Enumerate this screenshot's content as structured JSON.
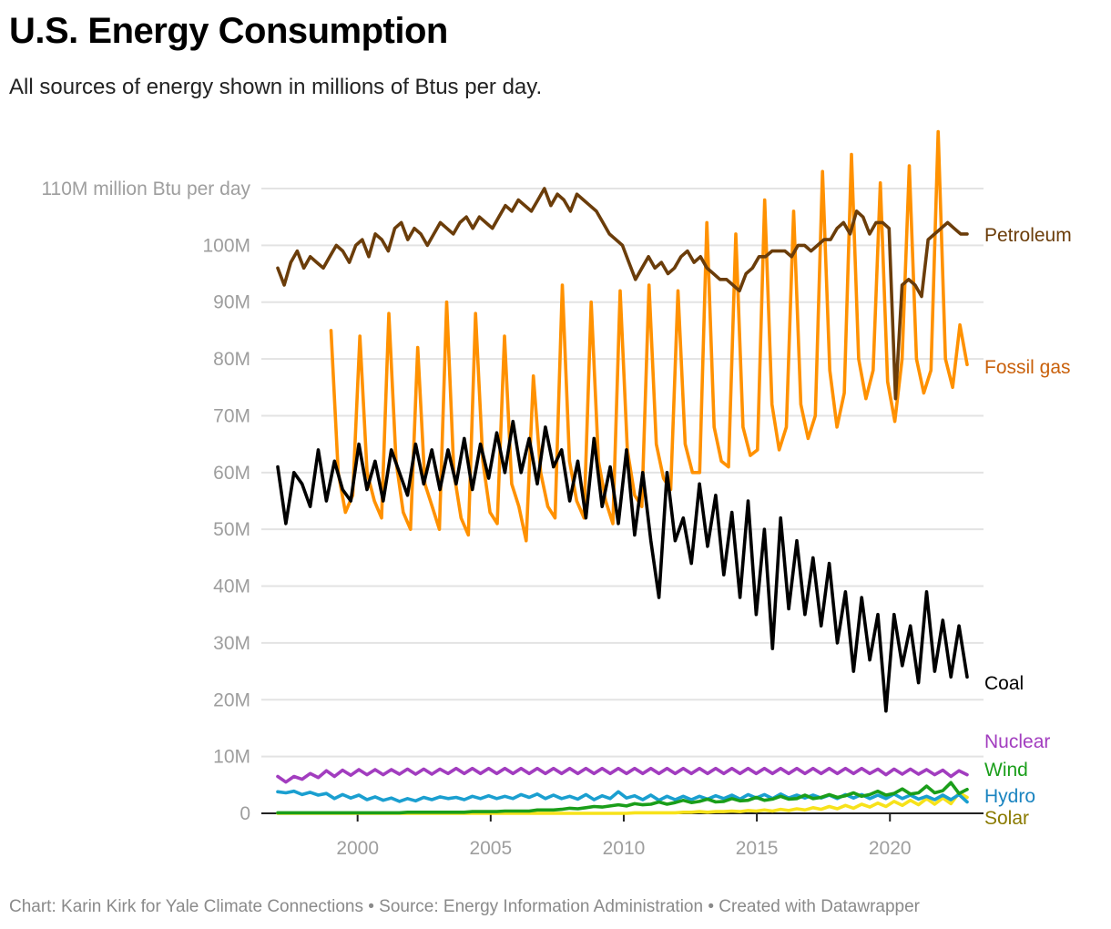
{
  "header": {
    "title": "U.S. Energy Consumption",
    "subtitle": "All sources of energy shown in millions of Btus per day."
  },
  "footer": {
    "text": "Chart: Karin Kirk for Yale Climate Connections • Source: Energy Information Administration • Created with Datawrapper"
  },
  "chart_data": {
    "type": "line",
    "title": "U.S. Energy Consumption",
    "subtitle": "All sources of energy shown in millions of Btus per day.",
    "xlabel": "",
    "ylabel": "million Btu per day",
    "xlim": [
      1997,
      2022.9
    ],
    "ylim": [
      0,
      110
    ],
    "y_unit": "million Btu per day (M)",
    "grid": true,
    "legend": "direct labels at right end of lines",
    "x_ticks": [
      2000,
      2005,
      2010,
      2015,
      2020
    ],
    "x_tick_labels": [
      "2000",
      "2005",
      "2010",
      "2015",
      "2020"
    ],
    "y_ticks": [
      0,
      10,
      20,
      30,
      40,
      50,
      60,
      70,
      80,
      90,
      100,
      110
    ],
    "y_tick_labels": [
      "0",
      "10M",
      "20M",
      "30M",
      "40M",
      "50M",
      "60M",
      "70M",
      "80M",
      "90M",
      "100M",
      "110M million Btu per day"
    ],
    "x_step": "quarterly samples (approx., from visual)",
    "series": [
      {
        "name": "Petroleum",
        "color": "#6b3d0a",
        "label_color": "#6b3d0a",
        "start": 1997.0,
        "values": [
          96,
          93,
          97,
          99,
          96,
          98,
          97,
          96,
          98,
          100,
          99,
          97,
          100,
          101,
          98,
          102,
          101,
          99,
          103,
          104,
          101,
          103,
          102,
          100,
          102,
          104,
          103,
          102,
          104,
          105,
          103,
          105,
          104,
          103,
          105,
          107,
          106,
          108,
          107,
          106,
          108,
          110,
          107,
          109,
          108,
          106,
          109,
          108,
          107,
          106,
          104,
          102,
          101,
          100,
          97,
          94,
          96,
          98,
          96,
          97,
          95,
          96,
          98,
          99,
          97,
          98,
          96,
          95,
          94,
          94,
          93,
          92,
          95,
          96,
          98,
          98,
          99,
          99,
          99,
          98,
          100,
          100,
          99,
          100,
          101,
          101,
          103,
          104,
          102,
          106,
          105,
          102,
          104,
          104,
          103,
          73,
          93,
          94,
          93,
          91,
          101,
          102,
          103,
          104,
          103,
          102,
          102
        ]
      },
      {
        "name": "Fossil gas",
        "color": "#ff9100",
        "label_color": "#c9610c",
        "start": 1999.0,
        "values": [
          85,
          60,
          53,
          56,
          84,
          60,
          55,
          52,
          88,
          62,
          53,
          50,
          82,
          58,
          54,
          50,
          90,
          60,
          52,
          49,
          88,
          62,
          53,
          51,
          84,
          58,
          54,
          48,
          77,
          60,
          54,
          52,
          93,
          62,
          55,
          52,
          90,
          62,
          55,
          51,
          92,
          64,
          56,
          54,
          93,
          65,
          59,
          57,
          92,
          65,
          60,
          60,
          104,
          68,
          62,
          61,
          102,
          68,
          63,
          64,
          108,
          72,
          64,
          68,
          106,
          72,
          66,
          70,
          113,
          78,
          68,
          74,
          116,
          80,
          73,
          78,
          111,
          76,
          69,
          80,
          114,
          80,
          74,
          78,
          120,
          80,
          75,
          86,
          79
        ]
      },
      {
        "name": "Coal",
        "color": "#000000",
        "label_color": "#000000",
        "start": 1997.0,
        "values": [
          61,
          51,
          60,
          58,
          54,
          64,
          55,
          62,
          57,
          55,
          65,
          57,
          62,
          55,
          64,
          60,
          56,
          65,
          58,
          64,
          57,
          64,
          58,
          66,
          57,
          65,
          59,
          67,
          60,
          69,
          60,
          66,
          58,
          68,
          61,
          64,
          55,
          62,
          52,
          66,
          54,
          61,
          51,
          64,
          49,
          60,
          48,
          38,
          60,
          48,
          52,
          44,
          58,
          47,
          56,
          42,
          53,
          38,
          55,
          35,
          50,
          29,
          52,
          36,
          48,
          35,
          45,
          33,
          44,
          30,
          39,
          25,
          38,
          27,
          35,
          18,
          35,
          26,
          33,
          23,
          39,
          25,
          34,
          24,
          33,
          24
        ]
      },
      {
        "name": "Nuclear",
        "color": "#a23dbf",
        "label_color": "#a23dbf",
        "start": 1997.0,
        "values": [
          6.5,
          5.5,
          6.5,
          6,
          7,
          6.3,
          7.5,
          6.5,
          7.6,
          6.7,
          7.7,
          6.8,
          7.7,
          6.8,
          7.7,
          6.9,
          7.8,
          6.9,
          7.8,
          6.9,
          7.8,
          7,
          7.9,
          7,
          7.9,
          7,
          7.9,
          7,
          7.9,
          7,
          7.9,
          7,
          7.9,
          7,
          7.9,
          7,
          7.9,
          7,
          7.9,
          7,
          7.9,
          7,
          7.9,
          7,
          7.9,
          7,
          7.9,
          7,
          7.9,
          7,
          7.9,
          7,
          7.9,
          7,
          7.9,
          7,
          7.9,
          7,
          7.9,
          7,
          7.9,
          7,
          7.9,
          7,
          7.9,
          7,
          7.9,
          7,
          7.9,
          7,
          7.9,
          7,
          7.9,
          7,
          7.8,
          6.8,
          7.8,
          6.9,
          7.8,
          6.9,
          7.7,
          6.8,
          7.6,
          6.5,
          7.5,
          6.8
        ]
      },
      {
        "name": "Wind",
        "color": "#1a9e1a",
        "label_color": "#1a9e1a",
        "start": 1997.0,
        "values": [
          0.1,
          0.1,
          0.1,
          0.1,
          0.1,
          0.1,
          0.1,
          0.1,
          0.1,
          0.1,
          0.1,
          0.1,
          0.1,
          0.1,
          0.1,
          0.1,
          0.2,
          0.2,
          0.2,
          0.2,
          0.2,
          0.2,
          0.2,
          0.2,
          0.3,
          0.3,
          0.3,
          0.3,
          0.4,
          0.4,
          0.4,
          0.4,
          0.6,
          0.6,
          0.6,
          0.7,
          0.9,
          0.8,
          1,
          1.2,
          1.1,
          1.3,
          1.5,
          1.3,
          1.7,
          1.5,
          1.6,
          2,
          1.6,
          1.9,
          2.3,
          1.9,
          2.1,
          2.5,
          2,
          2.1,
          2.6,
          2.2,
          2.3,
          2.8,
          2.3,
          2.5,
          3,
          2.5,
          2.6,
          3.2,
          2.6,
          2.8,
          3.3,
          2.8,
          3.1,
          3.6,
          3,
          3.3,
          3.9,
          3.2,
          3.5,
          4.3,
          3.4,
          3.6,
          4.8,
          3.6,
          4,
          5.4,
          3.5,
          4.2
        ]
      },
      {
        "name": "Hydro",
        "color": "#1a9fd0",
        "label_color": "#1a84c0",
        "start": 1997.0,
        "values": [
          3.8,
          3.6,
          3.9,
          3.3,
          3.7,
          3.2,
          3.5,
          2.6,
          3.3,
          2.7,
          3.2,
          2.4,
          2.9,
          2.3,
          2.7,
          2.1,
          2.6,
          2.2,
          2.8,
          2.4,
          2.9,
          2.6,
          2.8,
          2.4,
          3,
          2.6,
          3.1,
          2.6,
          3,
          2.6,
          3.3,
          2.8,
          3.4,
          2.6,
          3.2,
          2.6,
          3,
          2.5,
          3.3,
          2.4,
          3.1,
          2.6,
          3.8,
          2.7,
          3.1,
          2.4,
          3.2,
          2.3,
          3,
          2.4,
          3,
          2.4,
          3,
          2.5,
          3.1,
          2.6,
          3.2,
          2.5,
          3.3,
          2.7,
          3.3,
          2.6,
          3.4,
          2.7,
          3.2,
          2.7,
          3.2,
          2.7,
          3.2,
          2.6,
          3.3,
          2.7,
          3.3,
          2.6,
          3.2,
          2.6,
          3.4,
          2.6,
          3.2,
          2.5,
          3,
          2.4,
          3.2,
          2.4,
          3.3,
          2
        ]
      },
      {
        "name": "Solar",
        "color": "#f7e21a",
        "label_color": "#8a7a00",
        "start": 1997.0,
        "values": [
          0,
          0,
          0,
          0,
          0,
          0,
          0,
          0,
          0,
          0,
          0,
          0,
          0,
          0,
          0,
          0,
          0,
          0,
          0,
          0,
          0,
          0,
          0,
          0,
          0,
          0,
          0,
          0,
          0,
          0,
          0,
          0,
          0,
          0,
          0,
          0,
          0,
          0,
          0,
          0,
          0,
          0,
          0,
          0,
          0.1,
          0.1,
          0.1,
          0.1,
          0.1,
          0.1,
          0.2,
          0.2,
          0.3,
          0.2,
          0.3,
          0.3,
          0.4,
          0.3,
          0.5,
          0.4,
          0.6,
          0.4,
          0.7,
          0.5,
          0.8,
          0.6,
          1,
          0.7,
          1.2,
          0.8,
          1.4,
          0.9,
          1.6,
          1.1,
          1.8,
          1.2,
          2.1,
          1.4,
          2.3,
          1.5,
          2.6,
          1.6,
          2.7,
          1.7,
          3.6,
          2.8
        ]
      }
    ]
  }
}
